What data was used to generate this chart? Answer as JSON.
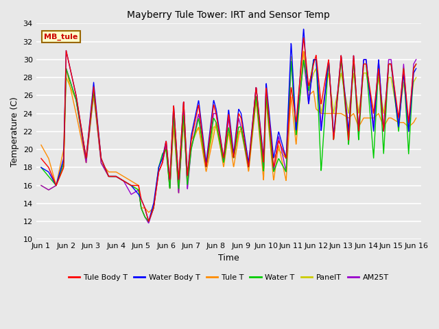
{
  "title": "Mayberry Tule Tower: IRT and Sensor Temp",
  "xlabel": "Time",
  "ylabel": "Temperature (C)",
  "ylim": [
    10,
    34
  ],
  "yticks": [
    10,
    12,
    14,
    16,
    18,
    20,
    22,
    24,
    26,
    28,
    30,
    32,
    34
  ],
  "x_labels": [
    "Jun 1",
    "Jun 2",
    "Jun 3",
    "Jun 4",
    "Jun 5",
    "Jun 6",
    "Jun 7",
    "Jun 8",
    "Jun 9",
    "Jun 10",
    "Jun 11",
    "Jun 12",
    "Jun 13",
    "Jun 14",
    "Jun 15",
    "Jun 16"
  ],
  "legend_entries": [
    "Tule Body T",
    "Water Body T",
    "Tule T",
    "Water T",
    "PanelT",
    "AM25T"
  ],
  "legend_colors": [
    "#ff0000",
    "#0000ff",
    "#ff8c00",
    "#00cc00",
    "#cccc00",
    "#9900cc"
  ],
  "watermark_text": "MB_tule",
  "watermark_bg": "#ffffcc",
  "watermark_border": "#996600",
  "watermark_text_color": "#cc0000",
  "plot_bg": "#e8e8e8",
  "fig_bg": "#e8e8e8",
  "grid_color": "#ffffff",
  "key_times_red": [
    0.0,
    0.3,
    0.6,
    0.9,
    1.0,
    1.4,
    1.8,
    2.1,
    2.4,
    2.7,
    3.0,
    3.3,
    3.6,
    3.9,
    4.0,
    4.15,
    4.3,
    4.5,
    4.7,
    4.85,
    5.0,
    5.15,
    5.3,
    5.5,
    5.7,
    5.85,
    6.0,
    6.3,
    6.6,
    6.9,
    7.0,
    7.3,
    7.5,
    7.7,
    7.9,
    8.0,
    8.3,
    8.6,
    8.9,
    9.0,
    9.3,
    9.5,
    9.8,
    10.0,
    10.2,
    10.5,
    10.7,
    10.9,
    11.0,
    11.2,
    11.5,
    11.7,
    12.0,
    12.3,
    12.5,
    12.7,
    12.9,
    13.0,
    13.3,
    13.5,
    13.7,
    13.9,
    14.0,
    14.3,
    14.5,
    14.7,
    14.9,
    15.0
  ],
  "key_vals_red": [
    19.0,
    18.0,
    16.0,
    18.0,
    31.0,
    26.0,
    19.0,
    27.0,
    19.0,
    17.0,
    17.0,
    16.5,
    16.0,
    16.0,
    14.5,
    13.5,
    12.0,
    13.5,
    17.5,
    18.5,
    21.0,
    16.5,
    25.0,
    16.5,
    25.5,
    17.0,
    21.0,
    25.0,
    18.0,
    25.0,
    24.0,
    19.0,
    24.0,
    19.0,
    24.0,
    23.5,
    18.0,
    27.0,
    18.5,
    27.0,
    18.0,
    21.0,
    19.0,
    27.0,
    23.0,
    32.5,
    27.0,
    29.5,
    30.5,
    25.0,
    30.0,
    21.0,
    30.5,
    21.0,
    30.5,
    22.0,
    29.5,
    29.5,
    24.0,
    29.0,
    22.0,
    29.5,
    29.5,
    23.5,
    29.0,
    23.0,
    29.0,
    29.5
  ],
  "key_times_blue": [
    0.0,
    0.3,
    0.6,
    0.9,
    1.0,
    1.4,
    1.8,
    2.1,
    2.4,
    2.7,
    3.0,
    3.3,
    3.6,
    3.9,
    4.0,
    4.15,
    4.3,
    4.5,
    4.7,
    4.85,
    5.0,
    5.15,
    5.3,
    5.5,
    5.7,
    5.85,
    6.0,
    6.3,
    6.6,
    6.9,
    7.0,
    7.3,
    7.5,
    7.7,
    7.9,
    8.0,
    8.3,
    8.6,
    8.9,
    9.0,
    9.3,
    9.5,
    9.8,
    10.0,
    10.2,
    10.5,
    10.7,
    10.9,
    11.0,
    11.2,
    11.5,
    11.7,
    12.0,
    12.3,
    12.5,
    12.7,
    12.9,
    13.0,
    13.3,
    13.5,
    13.7,
    13.9,
    14.0,
    14.3,
    14.5,
    14.7,
    14.9,
    15.0
  ],
  "key_vals_blue": [
    18.0,
    17.5,
    16.0,
    19.0,
    31.0,
    26.0,
    19.0,
    27.5,
    19.0,
    17.0,
    17.0,
    16.5,
    16.0,
    15.0,
    14.5,
    13.5,
    12.0,
    14.0,
    18.0,
    19.0,
    21.0,
    16.5,
    25.0,
    16.5,
    25.5,
    17.0,
    21.5,
    25.5,
    18.5,
    25.5,
    24.5,
    19.0,
    24.5,
    19.5,
    24.5,
    24.0,
    18.5,
    27.0,
    19.0,
    27.5,
    19.0,
    22.0,
    19.0,
    32.0,
    22.0,
    33.5,
    25.0,
    30.0,
    30.0,
    22.0,
    30.0,
    21.5,
    30.5,
    22.0,
    30.5,
    22.0,
    30.0,
    30.0,
    22.0,
    30.0,
    22.0,
    29.5,
    29.5,
    22.5,
    28.5,
    22.0,
    28.5,
    29.0
  ],
  "key_times_orange": [
    0.0,
    0.3,
    0.6,
    0.9,
    1.0,
    1.4,
    1.8,
    2.1,
    2.4,
    2.7,
    3.0,
    3.3,
    3.6,
    3.9,
    4.0,
    4.15,
    4.3,
    4.5,
    4.7,
    4.85,
    5.0,
    5.15,
    5.3,
    5.5,
    5.7,
    5.85,
    6.0,
    6.3,
    6.6,
    6.9,
    7.0,
    7.3,
    7.5,
    7.7,
    7.9,
    8.0,
    8.3,
    8.6,
    8.9,
    9.0,
    9.3,
    9.5,
    9.8,
    10.0,
    10.2,
    10.5,
    10.7,
    10.9,
    11.0,
    11.2,
    11.5,
    11.7,
    12.0,
    12.3,
    12.5,
    12.7,
    12.9,
    13.0,
    13.3,
    13.5,
    13.7,
    13.9,
    14.0,
    14.3,
    14.5,
    14.7,
    14.9,
    15.0
  ],
  "key_vals_orange": [
    20.5,
    19.0,
    16.0,
    20.0,
    29.0,
    24.0,
    18.5,
    26.0,
    18.5,
    17.5,
    17.5,
    17.0,
    16.5,
    16.0,
    13.5,
    13.5,
    13.0,
    13.5,
    17.5,
    18.5,
    20.5,
    16.0,
    22.5,
    16.0,
    23.0,
    16.5,
    21.0,
    22.5,
    17.5,
    21.5,
    23.0,
    18.0,
    22.0,
    18.0,
    21.5,
    22.5,
    17.5,
    25.5,
    16.5,
    25.5,
    16.5,
    20.5,
    16.5,
    26.0,
    20.5,
    31.0,
    26.0,
    26.5,
    24.5,
    24.0,
    24.0,
    24.0,
    24.0,
    23.5,
    24.0,
    22.5,
    23.5,
    23.5,
    23.5,
    24.0,
    22.5,
    23.5,
    23.5,
    23.0,
    23.0,
    22.5,
    23.0,
    23.5
  ],
  "key_times_green": [
    0.0,
    0.3,
    0.6,
    0.9,
    1.0,
    1.4,
    1.8,
    2.1,
    2.4,
    2.7,
    3.0,
    3.3,
    3.6,
    3.9,
    4.0,
    4.15,
    4.3,
    4.5,
    4.7,
    4.85,
    5.0,
    5.15,
    5.3,
    5.5,
    5.7,
    5.85,
    6.0,
    6.3,
    6.6,
    6.9,
    7.0,
    7.3,
    7.5,
    7.7,
    7.9,
    8.0,
    8.3,
    8.6,
    8.9,
    9.0,
    9.3,
    9.5,
    9.8,
    10.0,
    10.2,
    10.5,
    10.7,
    10.9,
    11.0,
    11.2,
    11.5,
    11.7,
    12.0,
    12.3,
    12.5,
    12.7,
    12.9,
    13.0,
    13.3,
    13.5,
    13.7,
    13.9,
    14.0,
    14.3,
    14.5,
    14.7,
    14.9,
    15.0
  ],
  "key_vals_green": [
    18.0,
    17.0,
    16.0,
    18.5,
    29.0,
    25.5,
    19.0,
    26.5,
    19.0,
    17.0,
    17.0,
    16.5,
    16.0,
    15.5,
    13.5,
    12.5,
    12.0,
    13.5,
    18.0,
    19.5,
    20.0,
    15.5,
    24.0,
    15.5,
    24.0,
    16.0,
    20.0,
    23.5,
    18.0,
    23.5,
    23.0,
    18.5,
    22.5,
    19.0,
    22.5,
    22.5,
    18.0,
    26.0,
    17.5,
    26.0,
    17.5,
    19.0,
    17.5,
    30.0,
    21.5,
    30.0,
    26.5,
    30.0,
    30.0,
    17.5,
    30.0,
    21.0,
    30.0,
    20.5,
    30.0,
    21.0,
    29.5,
    29.5,
    19.0,
    29.5,
    19.5,
    29.5,
    29.5,
    22.0,
    29.0,
    19.5,
    29.0,
    29.5
  ],
  "key_times_yellow": [
    0.0,
    0.3,
    0.6,
    0.9,
    1.0,
    1.4,
    1.8,
    2.1,
    2.4,
    2.7,
    3.0,
    3.3,
    3.6,
    3.9,
    4.0,
    4.15,
    4.3,
    4.5,
    4.7,
    4.85,
    5.0,
    5.15,
    5.3,
    5.5,
    5.7,
    5.85,
    6.0,
    6.3,
    6.6,
    6.9,
    7.0,
    7.3,
    7.5,
    7.7,
    7.9,
    8.0,
    8.3,
    8.6,
    8.9,
    9.0,
    9.3,
    9.5,
    9.8,
    10.0,
    10.2,
    10.5,
    10.7,
    10.9,
    11.0,
    11.2,
    11.5,
    11.7,
    12.0,
    12.3,
    12.5,
    12.7,
    12.9,
    13.0,
    13.3,
    13.5,
    13.7,
    13.9,
    14.0,
    14.3,
    14.5,
    14.7,
    14.9,
    15.0
  ],
  "key_vals_yellow": [
    16.0,
    15.5,
    16.0,
    18.0,
    28.0,
    25.5,
    18.5,
    26.5,
    18.5,
    17.0,
    17.0,
    16.5,
    16.0,
    15.5,
    13.5,
    12.5,
    12.0,
    13.5,
    18.0,
    19.0,
    20.0,
    15.5,
    23.0,
    15.0,
    23.5,
    16.0,
    20.5,
    22.5,
    18.0,
    22.5,
    22.5,
    18.5,
    22.0,
    19.0,
    22.0,
    22.0,
    18.0,
    25.5,
    19.0,
    25.5,
    19.0,
    20.0,
    19.0,
    30.5,
    22.0,
    31.0,
    26.5,
    28.5,
    29.0,
    24.0,
    28.5,
    24.0,
    28.5,
    24.0,
    28.5,
    24.0,
    28.5,
    28.5,
    24.0,
    28.0,
    24.0,
    28.0,
    28.0,
    23.0,
    27.5,
    23.0,
    27.5,
    28.0
  ],
  "key_times_purple": [
    0.0,
    0.3,
    0.6,
    0.9,
    1.0,
    1.4,
    1.8,
    2.1,
    2.4,
    2.7,
    3.0,
    3.3,
    3.6,
    3.9,
    4.0,
    4.15,
    4.3,
    4.5,
    4.7,
    4.85,
    5.0,
    5.15,
    5.3,
    5.5,
    5.7,
    5.85,
    6.0,
    6.3,
    6.6,
    6.9,
    7.0,
    7.3,
    7.5,
    7.7,
    7.9,
    8.0,
    8.3,
    8.6,
    8.9,
    9.0,
    9.3,
    9.5,
    9.8,
    10.0,
    10.2,
    10.5,
    10.7,
    10.9,
    11.0,
    11.2,
    11.5,
    11.7,
    12.0,
    12.3,
    12.5,
    12.7,
    12.9,
    13.0,
    13.3,
    13.5,
    13.7,
    13.9,
    14.0,
    14.3,
    14.5,
    14.7,
    14.9,
    15.0
  ],
  "key_vals_purple": [
    16.0,
    15.5,
    16.0,
    18.5,
    29.0,
    25.5,
    18.5,
    26.5,
    18.5,
    17.0,
    17.0,
    16.5,
    15.0,
    15.5,
    13.5,
    12.5,
    11.8,
    13.5,
    17.5,
    18.5,
    20.5,
    15.5,
    24.5,
    15.0,
    24.5,
    15.5,
    20.0,
    24.0,
    18.0,
    24.0,
    24.0,
    18.5,
    23.5,
    19.0,
    23.5,
    22.5,
    18.0,
    27.0,
    17.5,
    27.0,
    17.5,
    21.5,
    17.5,
    30.0,
    22.0,
    30.0,
    25.0,
    30.0,
    30.0,
    22.5,
    30.0,
    21.5,
    30.0,
    21.5,
    30.0,
    22.0,
    30.0,
    30.0,
    22.5,
    30.0,
    22.0,
    30.0,
    30.0,
    22.5,
    29.5,
    22.0,
    29.5,
    30.0
  ]
}
